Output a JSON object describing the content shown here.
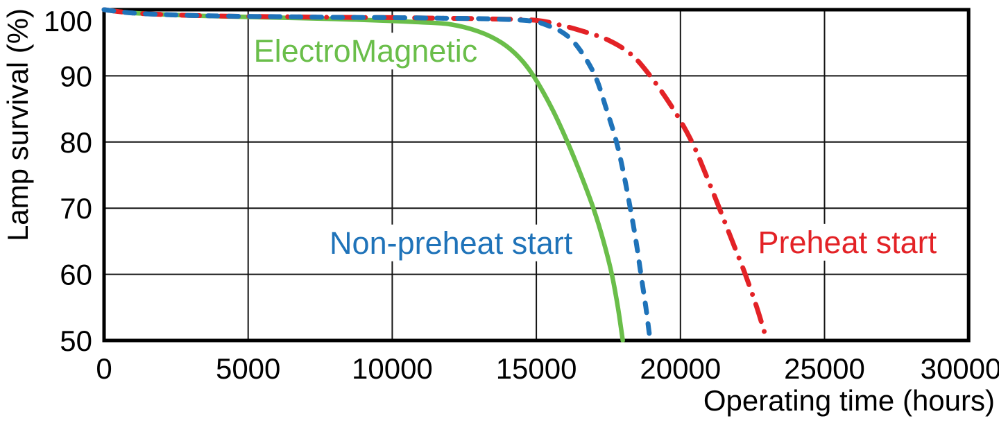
{
  "chart_data": {
    "type": "line",
    "title": "",
    "xlabel": "Operating time (hours)",
    "ylabel": "Lamp survival (%)",
    "xlim": [
      0,
      30000
    ],
    "ylim": [
      50,
      100
    ],
    "x_ticks": [
      0,
      5000,
      10000,
      15000,
      20000,
      25000,
      30000
    ],
    "x_tick_labels": [
      "0",
      "5000",
      "10000",
      "15000",
      "20000",
      "25000",
      "30000"
    ],
    "y_ticks": [
      50,
      60,
      70,
      80,
      90,
      100
    ],
    "y_tick_labels": [
      "50",
      "60",
      "70",
      "80",
      "90",
      "100"
    ],
    "grid": true,
    "legend_position": "inline-annotations",
    "colors": {
      "electromagnetic": "#6ABE4A",
      "non_preheat": "#1F73B9",
      "preheat": "#E32226",
      "axis": "#000000",
      "grid": "#141414",
      "background": "#ffffff"
    },
    "series": [
      {
        "name": "ElectroMagnetic",
        "color": "#6ABE4A",
        "style": "solid",
        "points": [
          [
            0,
            100
          ],
          [
            1000,
            99.5
          ],
          [
            2500,
            99.2
          ],
          [
            4000,
            99.0
          ],
          [
            6000,
            98.8
          ],
          [
            8000,
            98.6
          ],
          [
            10000,
            98.3
          ],
          [
            11000,
            98.1
          ],
          [
            12000,
            97.8
          ],
          [
            13000,
            96.7
          ],
          [
            13800,
            95.0
          ],
          [
            14400,
            92.8
          ],
          [
            14900,
            90
          ],
          [
            15550,
            85
          ],
          [
            16080,
            80
          ],
          [
            16550,
            75
          ],
          [
            16980,
            70
          ],
          [
            17330,
            65
          ],
          [
            17620,
            60
          ],
          [
            17830,
            55
          ],
          [
            18000,
            50
          ]
        ]
      },
      {
        "name": "Preheat start",
        "color": "#E32226",
        "style": "dash-dot",
        "points": [
          [
            0,
            100
          ],
          [
            1000,
            99.5
          ],
          [
            2500,
            99.2
          ],
          [
            4000,
            99.05
          ],
          [
            6000,
            98.95
          ],
          [
            8000,
            98.85
          ],
          [
            10000,
            98.8
          ],
          [
            12000,
            98.7
          ],
          [
            13500,
            98.6
          ],
          [
            15000,
            98.4
          ],
          [
            15800,
            97.7
          ],
          [
            16500,
            96.9
          ],
          [
            17500,
            95.4
          ],
          [
            18300,
            93.2
          ],
          [
            18950,
            90
          ],
          [
            19750,
            85
          ],
          [
            20400,
            80
          ],
          [
            20890,
            75
          ],
          [
            21350,
            70
          ],
          [
            21800,
            65
          ],
          [
            22250,
            60
          ],
          [
            22650,
            55
          ],
          [
            23000,
            50
          ]
        ]
      },
      {
        "name": "Non-preheat start",
        "color": "#1F73B9",
        "style": "dashed",
        "points": [
          [
            0,
            100
          ],
          [
            1000,
            99.5
          ],
          [
            2500,
            99.2
          ],
          [
            4000,
            99.05
          ],
          [
            6000,
            98.95
          ],
          [
            8000,
            98.85
          ],
          [
            10000,
            98.8
          ],
          [
            12000,
            98.7
          ],
          [
            13500,
            98.6
          ],
          [
            14800,
            98.3
          ],
          [
            15400,
            97.6
          ],
          [
            16000,
            96.3
          ],
          [
            16500,
            94.0
          ],
          [
            17040,
            90
          ],
          [
            17430,
            85
          ],
          [
            17780,
            80
          ],
          [
            18040,
            75
          ],
          [
            18260,
            70
          ],
          [
            18460,
            65
          ],
          [
            18630,
            60
          ],
          [
            18800,
            55
          ],
          [
            18950,
            50
          ]
        ]
      }
    ],
    "annotations": [
      {
        "text": "ElectroMagnetic",
        "color": "#6ABE4A",
        "x": 9075,
        "y": 93.8
      },
      {
        "text": "Non-preheat start",
        "color": "#1F73B9",
        "x": 12040,
        "y": 64.8
      },
      {
        "text": "Preheat start",
        "color": "#E32226",
        "x": 25790,
        "y": 64.9
      }
    ]
  }
}
